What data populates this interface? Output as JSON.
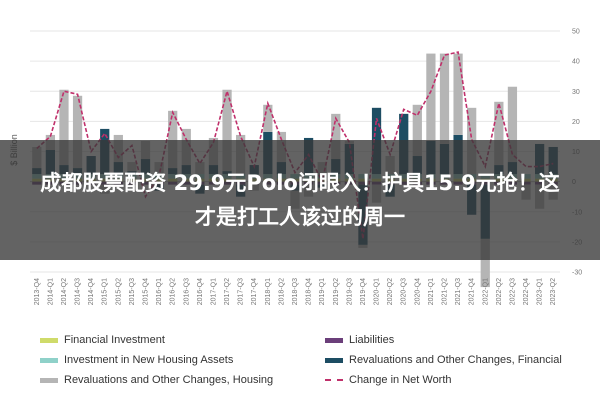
{
  "banner": {
    "text": "成都股票配资 29.9元Polo闭眼入！护具15.9元抢！这才是打工人该过的周一"
  },
  "chart_data": {
    "type": "bar",
    "stacked": true,
    "ylabel": "$ Billion",
    "ylim": [
      -30,
      50
    ],
    "yticks": [
      -30,
      -20,
      -10,
      0,
      10,
      20,
      30,
      40,
      50
    ],
    "grid": true,
    "legend_position": "bottom",
    "categories": [
      "2013-Q4",
      "2014-Q1",
      "2014-Q2",
      "2014-Q3",
      "2014-Q4",
      "2015-Q1",
      "2015-Q2",
      "2015-Q3",
      "2015-Q4",
      "2016-Q1",
      "2016-Q2",
      "2016-Q3",
      "2016-Q4",
      "2017-Q1",
      "2017-Q2",
      "2017-Q3",
      "2017-Q4",
      "2018-Q1",
      "2018-Q2",
      "2018-Q3",
      "2018-Q4",
      "2019-Q1",
      "2019-Q2",
      "2019-Q3",
      "2019-Q4",
      "2020-Q1",
      "2020-Q2",
      "2020-Q3",
      "2020-Q4",
      "2021-Q1",
      "2021-Q2",
      "2021-Q3",
      "2021-Q4",
      "2022-Q1",
      "2022-Q2",
      "2022-Q3",
      "2022-Q4",
      "2023-Q1",
      "2023-Q2"
    ],
    "series": [
      {
        "name": "Financial Investment",
        "color": "#cfdb6a",
        "type": "bar",
        "values": [
          1,
          1,
          1,
          1,
          1,
          1,
          1,
          1,
          1,
          1,
          1,
          1,
          1,
          1,
          1,
          1,
          1,
          1,
          1,
          1,
          1,
          1,
          1,
          1,
          1,
          1,
          1,
          1,
          1,
          1,
          1,
          1,
          1,
          1,
          1,
          1,
          1,
          1,
          1
        ]
      },
      {
        "name": "Liabilities",
        "color": "#6b3f7a",
        "type": "bar",
        "values": [
          -1,
          -1,
          -1,
          -1,
          -1,
          -1,
          -1,
          -1,
          -1,
          -1,
          -1,
          -1,
          -1,
          -1,
          -1,
          -1,
          -1,
          -1,
          -1,
          -1,
          -1,
          -1,
          -1,
          -1,
          -1,
          -1,
          -1,
          -1,
          -1,
          -1,
          -1,
          -1,
          -1,
          -1,
          -1,
          -1,
          -1,
          -1,
          -1
        ]
      },
      {
        "name": "Investment in New Housing Assets",
        "color": "#8fd1c9",
        "type": "bar",
        "values": [
          1.5,
          1.5,
          1.5,
          1.5,
          1.5,
          1.5,
          1.5,
          1.5,
          1.5,
          1.5,
          1.5,
          1.5,
          1.5,
          1.5,
          1.5,
          1.5,
          1.5,
          1.5,
          1.5,
          1.5,
          1.5,
          1.5,
          1.5,
          1.5,
          1.5,
          1.5,
          1.5,
          1.5,
          1.5,
          1.5,
          1.5,
          1.5,
          1.5,
          1.5,
          1.5,
          1.5,
          1.5,
          1.5,
          1.5
        ]
      },
      {
        "name": "Revaluations and Other Changes, Financial",
        "color": "#1d4d63",
        "type": "bar",
        "values": [
          2,
          8,
          3,
          2,
          6,
          15,
          4,
          1,
          5,
          -2,
          2,
          3,
          -3,
          3,
          1,
          -4,
          3,
          14,
          4,
          -2,
          12,
          -1,
          5,
          10,
          -20,
          22,
          -4,
          20,
          6,
          11,
          10,
          13,
          -10,
          -18,
          3,
          4,
          0,
          10,
          9
        ]
      },
      {
        "name": "Revaluations and Other Changes, Housing",
        "color": "#b5b5b5",
        "type": "bar",
        "values": [
          7,
          5,
          25,
          24,
          0,
          -3,
          9,
          3,
          6,
          4,
          19,
          12,
          4,
          9,
          27,
          13,
          -2,
          9,
          10,
          -6,
          -4,
          4,
          15,
          1,
          -1,
          -6,
          6,
          0,
          17,
          29,
          30,
          27,
          22,
          -16,
          21,
          25,
          -5,
          -8,
          -5
        ]
      },
      {
        "name": "Change in Net Worth",
        "color": "#c0306b",
        "type": "line",
        "values": [
          11,
          15,
          30,
          29,
          10,
          16,
          8,
          12,
          -5,
          2,
          23,
          14,
          6,
          13,
          30,
          15,
          5,
          26,
          14,
          3,
          9,
          0,
          21,
          13,
          -19,
          21,
          9,
          24,
          22,
          30,
          42,
          43,
          14,
          5,
          26,
          9,
          5,
          5,
          6
        ]
      }
    ]
  }
}
